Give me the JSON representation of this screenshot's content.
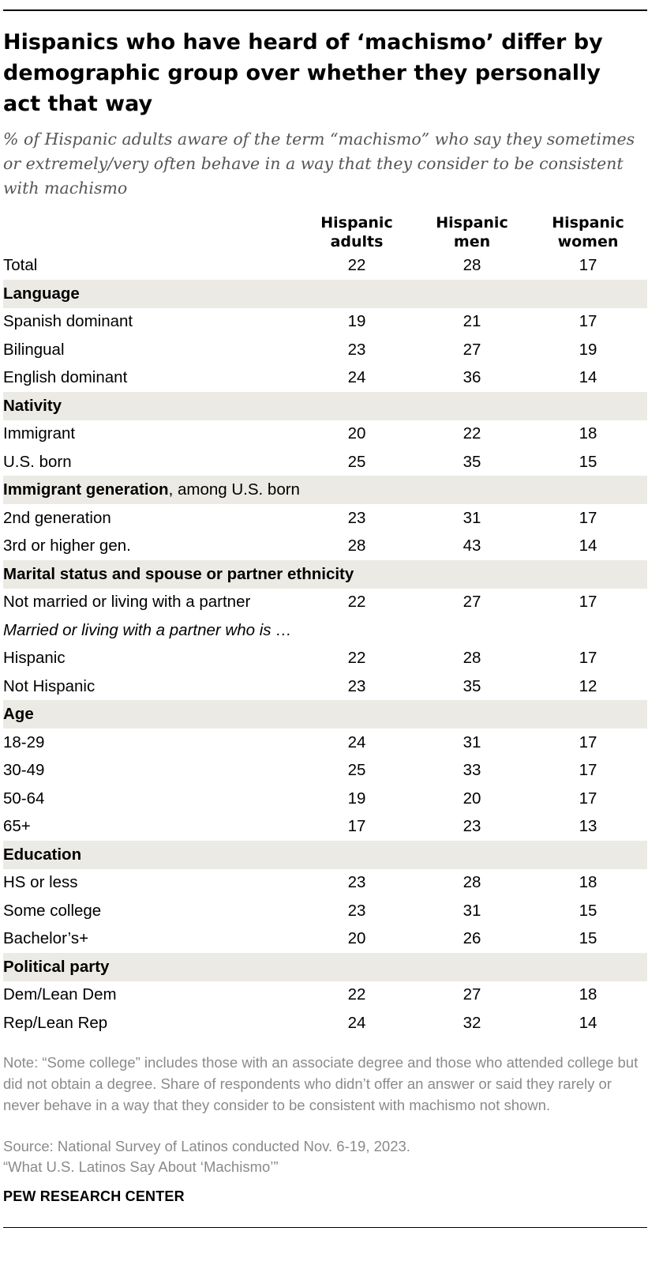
{
  "title": "Hispanics who have heard of ‘machismo’ differ by demographic group over whether they personally act that way",
  "subtitle": "% of Hispanic adults aware of the term “machismo” who say they sometimes or extremely/very often behave in a way that they consider to be consistent with machismo",
  "columns": [
    {
      "line1": "Hispanic",
      "line2": "adults"
    },
    {
      "line1": "Hispanic",
      "line2": "men"
    },
    {
      "line1": "Hispanic",
      "line2": "women"
    }
  ],
  "chart_data": {
    "type": "table",
    "title": "Hispanics who have heard of ‘machismo’ differ by demographic group over whether they personally act that way",
    "series_names": [
      "Hispanic adults",
      "Hispanic men",
      "Hispanic women"
    ],
    "rows": [
      {
        "kind": "data",
        "label": "Total",
        "values": [
          22,
          28,
          17
        ]
      },
      {
        "kind": "section",
        "label": "Language"
      },
      {
        "kind": "data",
        "label": "Spanish dominant",
        "values": [
          19,
          21,
          17
        ]
      },
      {
        "kind": "data",
        "label": "Bilingual",
        "values": [
          23,
          27,
          19
        ]
      },
      {
        "kind": "data",
        "label": "English dominant",
        "values": [
          24,
          36,
          14
        ]
      },
      {
        "kind": "section",
        "label": "Nativity"
      },
      {
        "kind": "data",
        "label": "Immigrant",
        "values": [
          20,
          22,
          18
        ]
      },
      {
        "kind": "data",
        "label": "U.S. born",
        "values": [
          25,
          35,
          15
        ]
      },
      {
        "kind": "section",
        "label": "Immigrant generation",
        "suffix": ", among U.S. born"
      },
      {
        "kind": "data",
        "label": "2nd generation",
        "values": [
          23,
          31,
          17
        ]
      },
      {
        "kind": "data",
        "label": "3rd or higher gen.",
        "values": [
          28,
          43,
          14
        ]
      },
      {
        "kind": "section",
        "label": "Marital status and spouse or partner ethnicity"
      },
      {
        "kind": "data",
        "label": "Not married or living with a partner",
        "values": [
          22,
          27,
          17
        ]
      },
      {
        "kind": "italic",
        "label": "Married or living with a partner who is …"
      },
      {
        "kind": "data",
        "label": "Hispanic",
        "values": [
          22,
          28,
          17
        ]
      },
      {
        "kind": "data",
        "label": "Not Hispanic",
        "values": [
          23,
          35,
          12
        ]
      },
      {
        "kind": "section",
        "label": "Age"
      },
      {
        "kind": "data",
        "label": "18-29",
        "values": [
          24,
          31,
          17
        ]
      },
      {
        "kind": "data",
        "label": "30-49",
        "values": [
          25,
          33,
          17
        ]
      },
      {
        "kind": "data",
        "label": "50-64",
        "values": [
          19,
          20,
          17
        ]
      },
      {
        "kind": "data",
        "label": "65+",
        "values": [
          17,
          23,
          13
        ]
      },
      {
        "kind": "section",
        "label": "Education"
      },
      {
        "kind": "data",
        "label": "HS or less",
        "values": [
          23,
          28,
          18
        ]
      },
      {
        "kind": "data",
        "label": "Some college",
        "values": [
          23,
          31,
          15
        ]
      },
      {
        "kind": "data",
        "label": "Bachelor’s+",
        "values": [
          20,
          26,
          15
        ]
      },
      {
        "kind": "section",
        "label": "Political party"
      },
      {
        "kind": "data",
        "label": "Dem/Lean Dem",
        "values": [
          22,
          27,
          18
        ]
      },
      {
        "kind": "data",
        "label": "Rep/Lean Rep",
        "values": [
          24,
          32,
          14
        ]
      }
    ]
  },
  "note": "Note: “Some college” includes those with an associate degree and those who attended college but did not obtain a degree. Share of respondents who didn’t offer an answer or said they rarely or never behave in a way that they consider to be consistent with machismo not shown.",
  "source": "Source: National Survey of Latinos conducted Nov. 6-19, 2023.",
  "report": "“What U.S. Latinos Say About ‘Machismo’”",
  "brand": "PEW RESEARCH CENTER"
}
